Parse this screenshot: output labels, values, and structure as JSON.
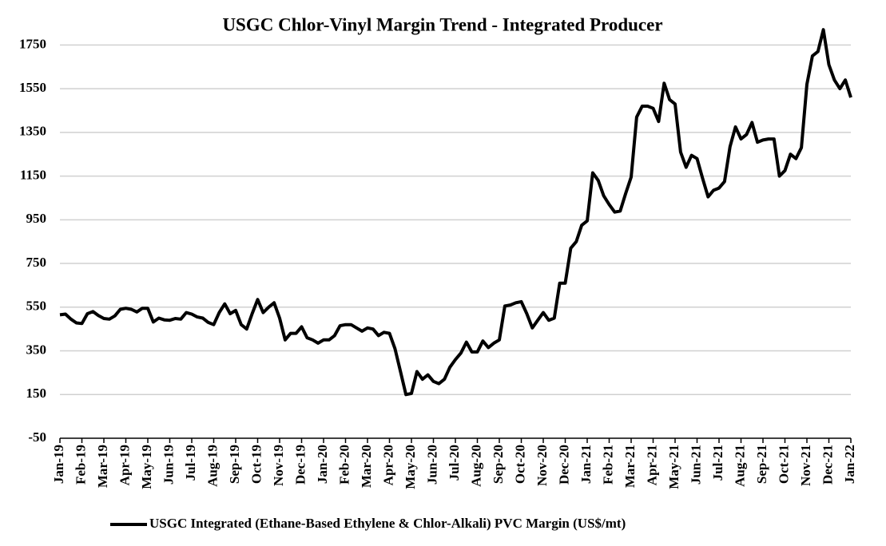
{
  "chart_data": {
    "type": "line",
    "title": "USGC Chlor-Vinyl Margin Trend - Integrated Producer",
    "categories": [
      "Jan-19",
      null,
      null,
      null,
      "Feb-19",
      null,
      null,
      null,
      "Mar-19",
      null,
      null,
      null,
      "Apr-19",
      null,
      null,
      null,
      "May-19",
      null,
      null,
      null,
      "Jun-19",
      null,
      null,
      null,
      "Jul-19",
      null,
      null,
      null,
      "Aug-19",
      null,
      null,
      null,
      "Sep-19",
      null,
      null,
      null,
      "Oct-19",
      null,
      null,
      null,
      "Nov-19",
      null,
      null,
      null,
      "Dec-19",
      null,
      null,
      null,
      "Jan-20",
      null,
      null,
      null,
      "Feb-20",
      null,
      null,
      null,
      "Mar-20",
      null,
      null,
      null,
      "Apr-20",
      null,
      null,
      null,
      "May-20",
      null,
      null,
      null,
      "Jun-20",
      null,
      null,
      null,
      "Jul-20",
      null,
      null,
      null,
      "Aug-20",
      null,
      null,
      null,
      "Sep-20",
      null,
      null,
      null,
      "Oct-20",
      null,
      null,
      null,
      "Nov-20",
      null,
      null,
      null,
      "Dec-20",
      null,
      null,
      null,
      "Jan-21",
      null,
      null,
      null,
      "Feb-21",
      null,
      null,
      null,
      "Mar-21",
      null,
      null,
      null,
      "Apr-21",
      null,
      null,
      null,
      "May-21",
      null,
      null,
      null,
      "Jun-21",
      null,
      null,
      null,
      "Jul-21",
      null,
      null,
      null,
      "Aug-21",
      null,
      null,
      null,
      "Sep-21",
      null,
      null,
      null,
      "Oct-21",
      null,
      null,
      null,
      "Nov-21",
      null,
      null,
      null,
      "Dec-21",
      null,
      null,
      null,
      "Jan-22"
    ],
    "series": [
      {
        "name": "USGC Integrated (Ethane-Based Ethylene & Chlor-Alkali) PVC Margin (US$/mt)",
        "color": "#000000",
        "values": [
          515,
          518,
          495,
          478,
          475,
          520,
          530,
          512,
          498,
          495,
          510,
          540,
          545,
          540,
          528,
          545,
          545,
          482,
          500,
          492,
          490,
          498,
          495,
          525,
          518,
          505,
          500,
          480,
          470,
          525,
          565,
          520,
          535,
          470,
          450,
          520,
          585,
          525,
          550,
          570,
          500,
          400,
          430,
          430,
          460,
          410,
          400,
          385,
          400,
          400,
          420,
          465,
          470,
          470,
          455,
          440,
          455,
          450,
          420,
          435,
          430,
          360,
          255,
          150,
          155,
          255,
          220,
          240,
          210,
          200,
          220,
          275,
          310,
          340,
          390,
          345,
          345,
          395,
          365,
          385,
          400,
          555,
          560,
          570,
          575,
          520,
          455,
          490,
          525,
          490,
          500,
          660,
          660,
          820,
          850,
          925,
          945,
          1165,
          1130,
          1060,
          1020,
          985,
          990,
          1070,
          1145,
          1420,
          1470,
          1470,
          1460,
          1400,
          1575,
          1500,
          1480,
          1260,
          1190,
          1245,
          1230,
          1140,
          1055,
          1085,
          1095,
          1125,
          1285,
          1375,
          1320,
          1340,
          1395,
          1305,
          1315,
          1320,
          1320,
          1150,
          1175,
          1250,
          1230,
          1280,
          1570,
          1700,
          1720,
          1820,
          1660,
          1590,
          1550,
          1590,
          1510
        ]
      }
    ],
    "ylim": [
      -50,
      1850
    ],
    "yticks": [
      -50,
      150,
      350,
      550,
      750,
      950,
      1150,
      1350,
      1550,
      1750
    ],
    "grid": true,
    "legend": "bottom"
  }
}
